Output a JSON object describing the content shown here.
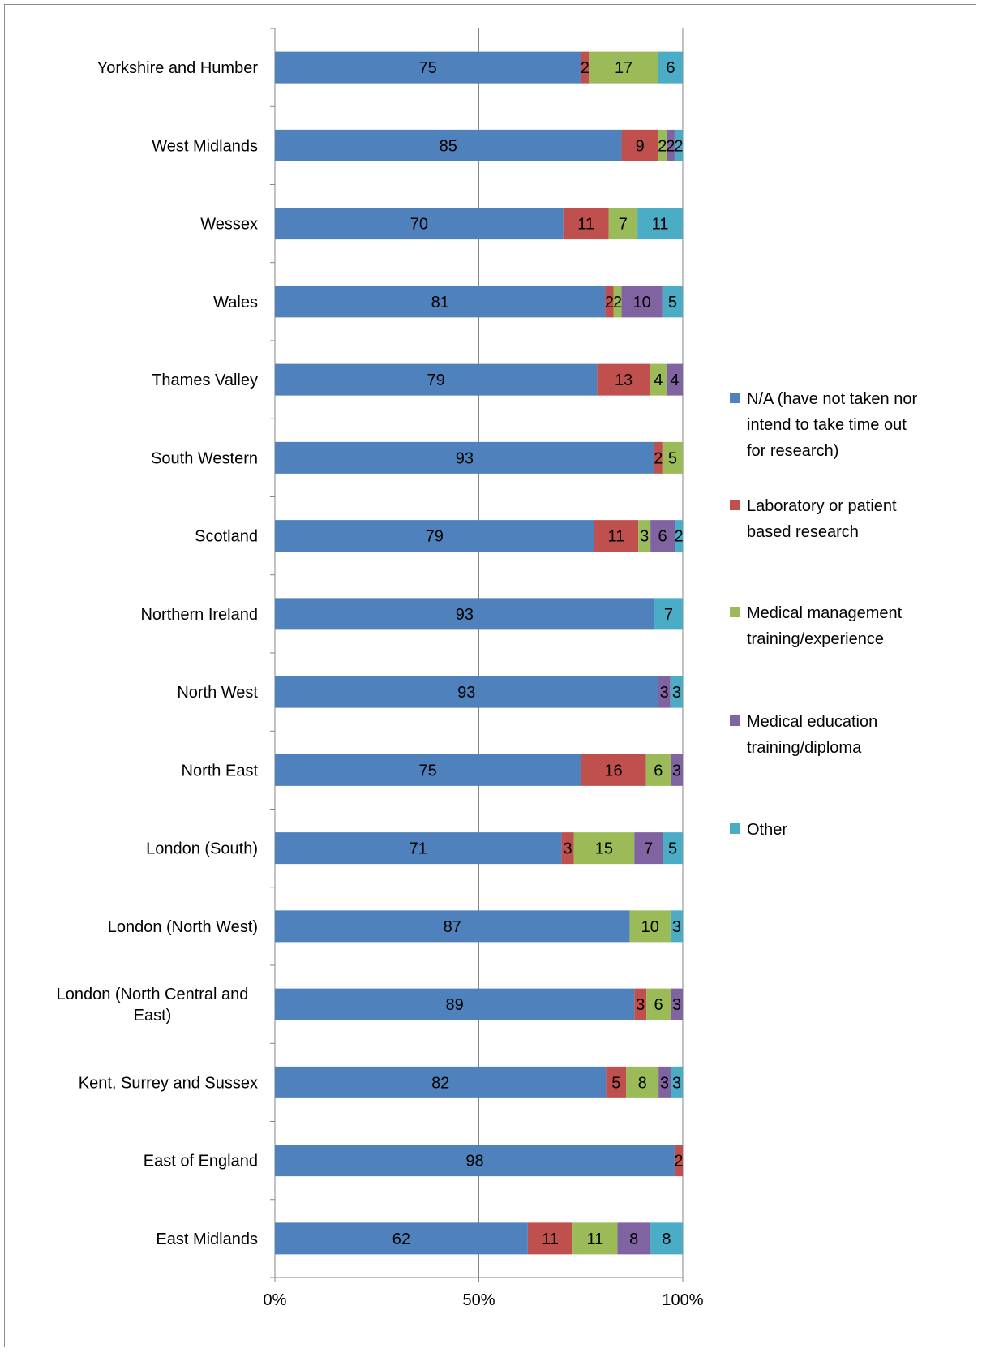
{
  "chart_data": {
    "type": "bar",
    "orientation": "horizontal",
    "stacked": "percent",
    "categories": [
      "Yorkshire and Humber",
      "West Midlands",
      "Wessex",
      "Wales",
      "Thames Valley",
      "South Western",
      "Scotland",
      "Northern Ireland",
      "North West",
      "North East",
      "London (South)",
      "London (North West)",
      "London (North Central and East)",
      "Kent, Surrey and Sussex",
      "East of England",
      "East Midlands"
    ],
    "category_lines": [
      [
        "Yorkshire and Humber"
      ],
      [
        "West Midlands"
      ],
      [
        "Wessex"
      ],
      [
        "Wales"
      ],
      [
        "Thames Valley"
      ],
      [
        "South Western"
      ],
      [
        "Scotland"
      ],
      [
        "Northern Ireland"
      ],
      [
        "North West"
      ],
      [
        "North East"
      ],
      [
        "London (South)"
      ],
      [
        "London (North West)"
      ],
      [
        "London (North Central and",
        "East)"
      ],
      [
        "Kent, Surrey and Sussex"
      ],
      [
        "East of England"
      ],
      [
        "East Midlands"
      ]
    ],
    "series": [
      {
        "name": "N/A (have not taken nor intend to take time out for research)",
        "legend_lines": [
          "N/A (have not taken nor",
          "intend to take time out",
          "for research)"
        ],
        "color": "#4f81bd",
        "values": [
          75,
          85,
          70,
          81,
          79,
          93,
          79,
          93,
          93,
          75,
          71,
          87,
          89,
          82,
          98,
          62
        ]
      },
      {
        "name": "Laboratory or patient based research",
        "legend_lines": [
          "Laboratory or patient",
          "based research"
        ],
        "color": "#c0504d",
        "values": [
          2,
          9,
          11,
          2,
          13,
          2,
          11,
          0,
          0,
          16,
          3,
          0,
          3,
          5,
          2,
          11
        ]
      },
      {
        "name": "Medical management training/experience",
        "legend_lines": [
          "Medical management",
          "training/experience"
        ],
        "color": "#9bbb59",
        "values": [
          17,
          2,
          7,
          2,
          4,
          5,
          3,
          0,
          0,
          6,
          15,
          10,
          6,
          8,
          0,
          11
        ]
      },
      {
        "name": "Medical education training/diploma",
        "legend_lines": [
          "Medical education",
          "training/diploma"
        ],
        "color": "#8064a2",
        "values": [
          0,
          2,
          0,
          10,
          4,
          0,
          6,
          0,
          3,
          3,
          7,
          0,
          3,
          3,
          0,
          8
        ]
      },
      {
        "name": "Other",
        "legend_lines": [
          "Other"
        ],
        "color": "#4bacc6",
        "values": [
          6,
          2,
          11,
          5,
          0,
          0,
          2,
          7,
          3,
          0,
          5,
          3,
          0,
          3,
          0,
          8
        ]
      }
    ],
    "x_ticks": [
      "0%",
      "50%",
      "100%"
    ],
    "xlim": [
      0,
      100
    ],
    "title": "",
    "xlabel": "",
    "ylabel": "",
    "gridlines": "vertical",
    "legend_position": "right"
  }
}
